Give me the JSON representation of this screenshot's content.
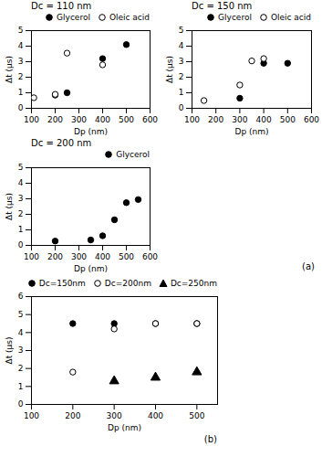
{
  "chart_data": [
    {
      "type": "scatter",
      "title": "Dc = 110 nm",
      "xlabel": "Dp (nm)",
      "ylabel": "Δt (μs)",
      "xlim": [
        100,
        600
      ],
      "ylim": [
        0,
        5
      ],
      "xticks": [
        100,
        200,
        300,
        400,
        500,
        600
      ],
      "yticks": [
        0,
        1,
        2,
        3,
        4,
        5
      ],
      "grid": false,
      "legend": "upper-right",
      "series": [
        {
          "name": "Glycerol",
          "color": "black",
          "marker": "circle",
          "x": [
            200,
            250,
            400,
            500
          ],
          "values": [
            0.85,
            1.0,
            3.2,
            4.1
          ]
        },
        {
          "name": "Oleic acid",
          "color": "black",
          "marker": "circle-open",
          "x": [
            110,
            200,
            250,
            400
          ],
          "values": [
            0.68,
            0.9,
            3.55,
            2.8
          ]
        }
      ]
    },
    {
      "type": "scatter",
      "title": "Dc = 150 nm",
      "xlabel": "Dp (nm)",
      "ylabel": "Δt (μs)",
      "xlim": [
        100,
        600
      ],
      "ylim": [
        0,
        5
      ],
      "xticks": [
        100,
        200,
        300,
        400,
        500,
        600
      ],
      "yticks": [
        0,
        1,
        2,
        3,
        4,
        5
      ],
      "grid": false,
      "legend": "upper-right",
      "series": [
        {
          "name": "Glycerol",
          "color": "black",
          "marker": "circle",
          "x": [
            300,
            400,
            500
          ],
          "values": [
            0.65,
            2.9,
            2.9
          ]
        },
        {
          "name": "Oleic acid",
          "color": "black",
          "marker": "circle-open",
          "x": [
            150,
            300,
            350,
            400
          ],
          "values": [
            0.5,
            1.5,
            3.05,
            3.2
          ]
        }
      ]
    },
    {
      "type": "scatter",
      "title": "Dc = 200 nm",
      "xlabel": "Dp (nm)",
      "ylabel": "Δt (μs)",
      "xlim": [
        100,
        600
      ],
      "ylim": [
        0,
        5
      ],
      "xticks": [
        100,
        200,
        300,
        400,
        500,
        600
      ],
      "yticks": [
        0,
        1,
        2,
        3,
        4,
        5
      ],
      "grid": false,
      "legend": "upper-right",
      "annotations": [
        "(a)"
      ],
      "series": [
        {
          "name": "Glycerol",
          "color": "black",
          "marker": "circle",
          "x": [
            200,
            350,
            400,
            450,
            500,
            550
          ],
          "values": [
            0.28,
            0.35,
            0.62,
            1.65,
            2.75,
            2.95
          ]
        }
      ]
    },
    {
      "type": "scatter",
      "xlabel": "Dp (nm)",
      "ylabel": "Δt (μs)",
      "xlim": [
        100,
        550
      ],
      "ylim": [
        0,
        6
      ],
      "xticks": [
        100,
        200,
        300,
        400,
        500
      ],
      "yticks": [
        0,
        1,
        2,
        3,
        4,
        5,
        6
      ],
      "grid": false,
      "legend": "upper-right",
      "annotations": [
        "(b)"
      ],
      "series": [
        {
          "name": "Dc=150nm",
          "color": "black",
          "marker": "circle",
          "x": [
            200,
            300,
            400,
            500
          ],
          "values": [
            4.5,
            4.5,
            4.5,
            4.5
          ]
        },
        {
          "name": "Dc=200nm",
          "color": "black",
          "marker": "circle-open",
          "x": [
            200,
            300,
            400,
            500
          ],
          "values": [
            1.8,
            4.2,
            4.5,
            4.5
          ]
        },
        {
          "name": "Dc=250nm",
          "color": "black",
          "marker": "triangle",
          "x": [
            300,
            400,
            500
          ],
          "values": [
            1.3,
            1.5,
            1.8
          ]
        }
      ]
    }
  ]
}
